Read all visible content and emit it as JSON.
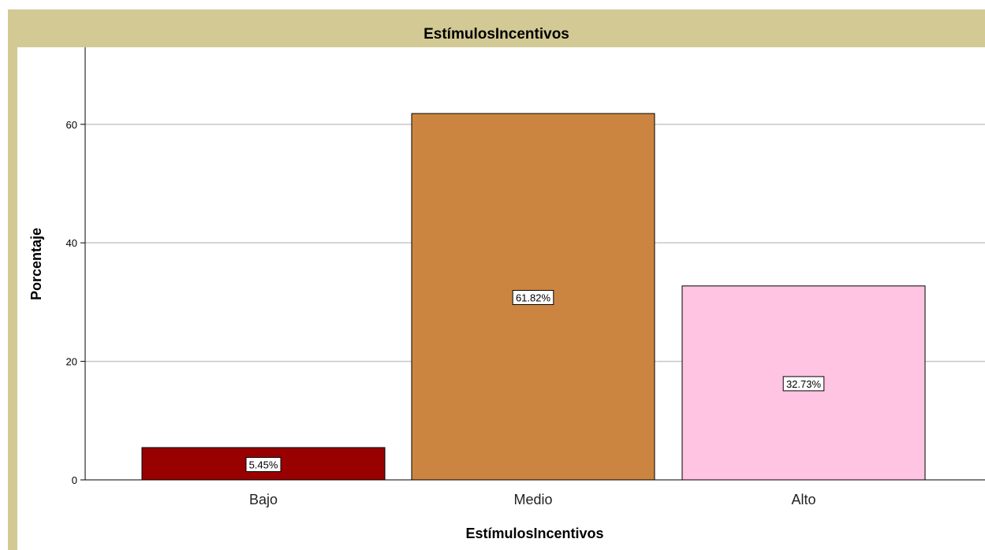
{
  "chart_data": {
    "type": "bar",
    "title": "EstímulosIncentivos",
    "xlabel": "EstímulosIncentivos",
    "ylabel": "Porcentaje",
    "categories": [
      "Bajo",
      "Medio",
      "Alto"
    ],
    "values": [
      5.45,
      61.82,
      32.73
    ],
    "data_labels": [
      "5.45%",
      "61.82%",
      "32.73%"
    ],
    "colors": [
      "#990000",
      "#cc8540",
      "#ffc4e1"
    ],
    "ylim": [
      0,
      73
    ],
    "yticks": [
      0,
      20,
      40,
      60
    ],
    "grid": true,
    "legend": "none"
  },
  "colors": {
    "frame": "#d2c994",
    "gridline": "#c8c8c8",
    "bar_outline": "#000000"
  }
}
